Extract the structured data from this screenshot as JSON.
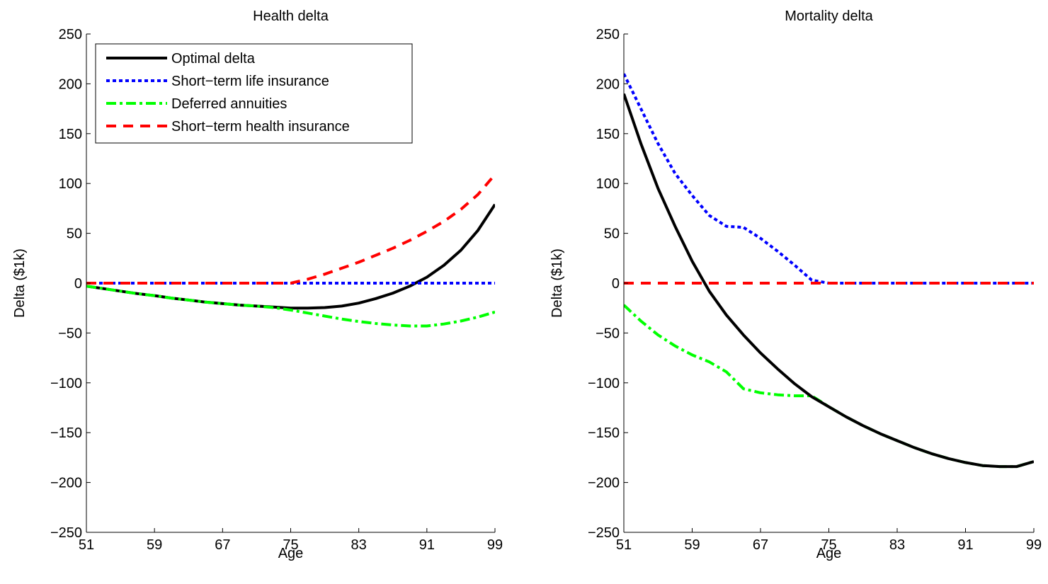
{
  "chart_data": [
    {
      "type": "line",
      "title": "Health delta",
      "xlabel": "Age",
      "ylabel": "Delta ($1k)",
      "xlim": [
        51,
        99
      ],
      "ylim": [
        -250,
        250
      ],
      "xticks": [
        "51",
        "59",
        "67",
        "75",
        "83",
        "91",
        "99"
      ],
      "yticks": [
        "250",
        "200",
        "150",
        "100",
        "50",
        "0",
        "−50",
        "−100",
        "−150",
        "−200",
        "−250"
      ],
      "grid": false,
      "legend": "top-left",
      "x": [
        51,
        53,
        55,
        57,
        59,
        61,
        63,
        65,
        67,
        69,
        71,
        73,
        75,
        77,
        79,
        81,
        83,
        85,
        87,
        89,
        91,
        93,
        95,
        97,
        99
      ],
      "series": [
        {
          "name": "Optimal delta",
          "color": "#000000",
          "style": "solid",
          "values": [
            -3,
            -5.5,
            -8,
            -10.5,
            -12.5,
            -15,
            -17,
            -19,
            -20.5,
            -22,
            -23,
            -24,
            -25,
            -25,
            -24.5,
            -23,
            -20,
            -15.5,
            -10,
            -3,
            6,
            18,
            33,
            53,
            79
          ]
        },
        {
          "name": "Short−term life insurance",
          "color": "#0000ff",
          "style": "dotted",
          "values": [
            0,
            0,
            0,
            0,
            0,
            0,
            0,
            0,
            0,
            0,
            0,
            0,
            0,
            0,
            0,
            0,
            0,
            0,
            0,
            0,
            0,
            0,
            0,
            0,
            0
          ]
        },
        {
          "name": "Deferred annuities",
          "color": "#00ff00",
          "style": "dashdot",
          "values": [
            -3,
            -5.5,
            -8,
            -10.5,
            -12.5,
            -15,
            -17,
            -19,
            -20.5,
            -22,
            -23,
            -24.5,
            -27,
            -30,
            -33,
            -36,
            -38.5,
            -40.5,
            -42,
            -43,
            -43,
            -41,
            -38,
            -34,
            -29
          ]
        },
        {
          "name": "Short−term health insurance",
          "color": "#ff0000",
          "style": "dashed",
          "values": [
            0,
            0,
            0,
            0,
            0,
            0,
            0,
            0,
            0,
            0,
            0,
            0,
            0,
            4,
            9,
            15,
            21,
            28,
            35,
            43,
            52,
            62,
            74,
            89,
            109
          ]
        }
      ]
    },
    {
      "type": "line",
      "title": "Mortality delta",
      "xlabel": "Age",
      "ylabel": "Delta ($1k)",
      "xlim": [
        51,
        99
      ],
      "ylim": [
        -250,
        250
      ],
      "xticks": [
        "51",
        "59",
        "67",
        "75",
        "83",
        "91",
        "99"
      ],
      "yticks": [
        "250",
        "200",
        "150",
        "100",
        "50",
        "0",
        "−50",
        "−100",
        "−150",
        "−200",
        "−250"
      ],
      "grid": false,
      "x": [
        51,
        53,
        55,
        57,
        59,
        61,
        63,
        65,
        67,
        69,
        71,
        73,
        75,
        77,
        79,
        81,
        83,
        85,
        87,
        89,
        91,
        93,
        95,
        97,
        99
      ],
      "series": [
        {
          "name": "Optimal delta",
          "color": "#000000",
          "style": "solid",
          "values": [
            190,
            140,
            95,
            57,
            22,
            -8,
            -32,
            -52,
            -70,
            -86,
            -101,
            -114,
            -124,
            -134,
            -143,
            -151,
            -158,
            -165,
            -171,
            -176,
            -180,
            -183,
            -184,
            -184,
            -179
          ]
        },
        {
          "name": "Short−term life insurance",
          "color": "#0000ff",
          "style": "dotted",
          "values": [
            210,
            175,
            140,
            110,
            88,
            68,
            57,
            56,
            45,
            32,
            18,
            3,
            0,
            0,
            0,
            0,
            0,
            0,
            0,
            0,
            0,
            0,
            0,
            0,
            0
          ]
        },
        {
          "name": "Deferred annuities",
          "color": "#00ff00",
          "style": "dashdot",
          "values": [
            -22,
            -38,
            -52,
            -63,
            -72,
            -79,
            -89,
            -106,
            -110,
            -112,
            -113,
            -113,
            -124,
            -134,
            -143,
            -151,
            -158,
            -165,
            -171,
            -176,
            -180,
            -183,
            -184,
            -184,
            -179
          ]
        },
        {
          "name": "Short−term health insurance",
          "color": "#ff0000",
          "style": "dashed",
          "values": [
            0,
            0,
            0,
            0,
            0,
            0,
            0,
            0,
            0,
            0,
            0,
            0,
            0,
            0,
            0,
            0,
            0,
            0,
            0,
            0,
            0,
            0,
            0,
            0,
            0
          ]
        }
      ]
    }
  ]
}
